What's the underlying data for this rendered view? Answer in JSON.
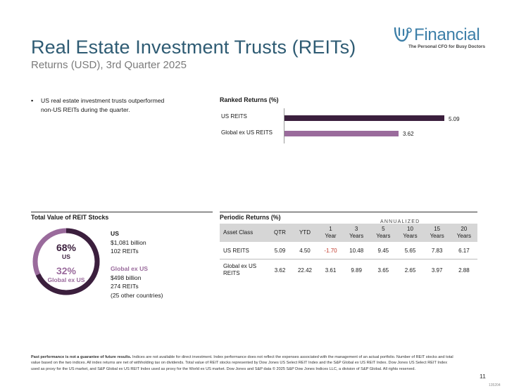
{
  "header": {
    "title": "Real Estate Investment Trusts (REITs)",
    "subtitle": "Returns (USD), 3rd Quarter 2025"
  },
  "logo": {
    "name": "Financial",
    "tagline": "The Personal CFO for Busy Doctors",
    "color": "#3d7fa8"
  },
  "commentary": {
    "bullet": "US real estate investment trusts outperformed non-US REITs during the quarter."
  },
  "ranked_returns": {
    "title": "Ranked Returns (%)",
    "bars": [
      {
        "label": "US REITS",
        "value": 5.09,
        "display": "5.09",
        "color": "#3b1f3d"
      },
      {
        "label": "Global ex US REITS",
        "value": 3.62,
        "display": "3.62",
        "color": "#9a6b9c"
      }
    ],
    "chart_data": {
      "type": "bar",
      "categories": [
        "US REITS",
        "Global ex US REITS"
      ],
      "values": [
        5.09,
        3.62
      ],
      "title": "Ranked Returns (%)",
      "xlim": [
        0,
        5.6
      ]
    }
  },
  "total_value": {
    "title": "Total Value of REIT Stocks",
    "us_pct": "68%",
    "us_label": "US",
    "global_pct": "32%",
    "global_label": "Global ex US",
    "us_fraction": 0.68,
    "us_color": "#3b1f3d",
    "global_color": "#9a6b9c",
    "legend_us": {
      "name": "US",
      "value": "$1,081 billion",
      "count": "102 REITs"
    },
    "legend_global": {
      "name": "Global ex US",
      "value": "$498 billion",
      "count": "274 REITs",
      "note": "(25 other countries)"
    }
  },
  "periodic_returns": {
    "title": "Periodic Returns (%)",
    "annualized_label": "ANNUALIZED",
    "headers": [
      [
        "Asset Class"
      ],
      [
        "QTR"
      ],
      [
        "YTD"
      ],
      [
        "1",
        "Year"
      ],
      [
        "3",
        "Years"
      ],
      [
        "5",
        "Years"
      ],
      [
        "10",
        "Years"
      ],
      [
        "15",
        "Years"
      ],
      [
        "20",
        "Years"
      ]
    ],
    "rows": [
      {
        "name": [
          "US REITS"
        ],
        "values": [
          "5.09",
          "4.50",
          "-1.70",
          "10.48",
          "9.45",
          "5.65",
          "7.83",
          "6.17"
        ]
      },
      {
        "name": [
          "Global ex US",
          "REITS"
        ],
        "values": [
          "3.62",
          "22.42",
          "3.61",
          "9.89",
          "3.65",
          "2.65",
          "3.97",
          "2.88"
        ]
      }
    ],
    "negative_color": "#c0392b"
  },
  "footer": {
    "disclaimer_bold": "Past performance is not a guarantee of future results.",
    "disclaimer": "Indices are not available for direct investment. Index performance does not reflect the expenses associated with the management of an actual portfolio. Number of REIT stocks and total value based on the two indices. All index returns are net of withholding tax on dividends. Total value of REIT stocks represented by Dow Jones US Select REIT Index and the S&P Global ex US REIT Index. Dow Jones US Select REIT Index used as proxy for the US market, and S&P Global ex US REIT Index used as proxy for the World ex US market. Dow Jones and S&P data © 2025 S&P Dow Jones Indices LLC, a division of S&P Global. All rights reserved.",
    "page_number": "11",
    "code": "135204"
  }
}
